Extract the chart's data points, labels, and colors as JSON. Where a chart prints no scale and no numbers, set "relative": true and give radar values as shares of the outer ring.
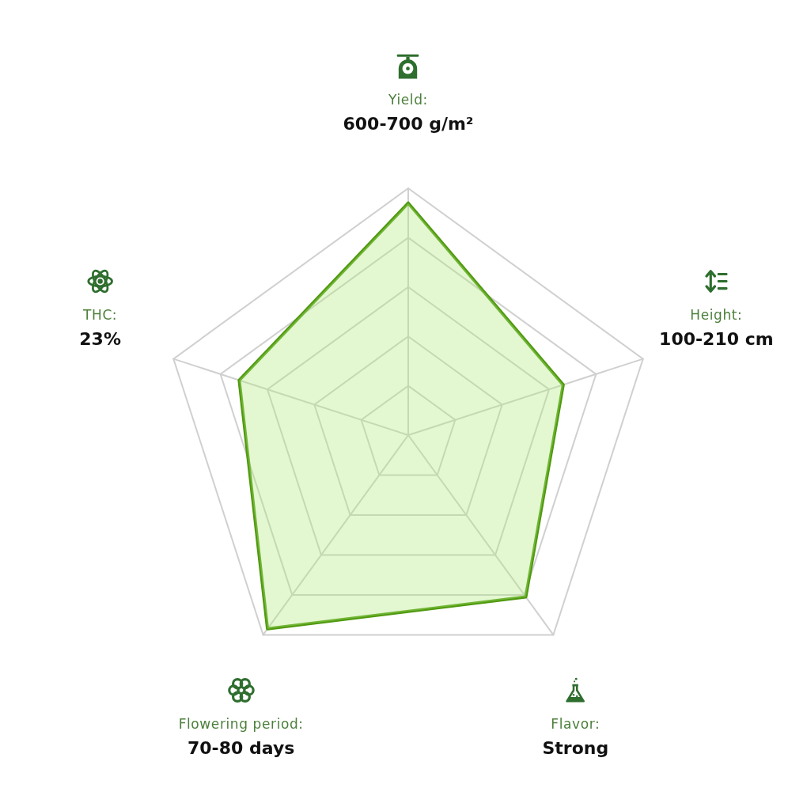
{
  "chart_data": {
    "type": "radar",
    "relative": true,
    "marker": "none",
    "categories": [
      "Yield:\n600-700 g/m²",
      "Height:\n100-210 cm",
      "Flavor:\nStrong",
      "Flowering period:\n70-80 days",
      "THC:\n23%"
    ],
    "values": [
      0.94,
      0.66,
      0.81,
      0.97,
      0.72
    ],
    "color": "#4f990f"
  }
}
